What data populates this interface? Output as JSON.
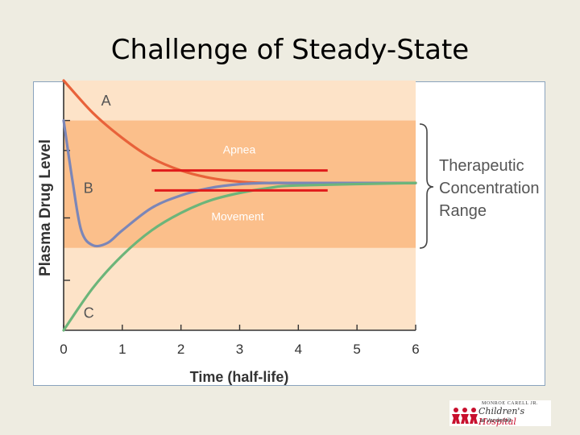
{
  "slide": {
    "title": "Challenge of Steady-State"
  },
  "chart_data": {
    "type": "line",
    "title": "",
    "xlabel": "Time (half-life)",
    "ylabel": "Plasma Drug Level",
    "x_ticks": [
      "0",
      "1",
      "2",
      "3",
      "4",
      "5",
      "6"
    ],
    "xlim": [
      0,
      6
    ],
    "steady_state_level": 0.59,
    "series": [
      {
        "name": "A",
        "color": "#e8623a",
        "x": [
          0,
          0.5,
          1,
          1.5,
          2,
          2.5,
          3,
          3.5,
          4,
          6
        ],
        "y": [
          1.0,
          0.87,
          0.77,
          0.69,
          0.64,
          0.61,
          0.595,
          0.59,
          0.59,
          0.59
        ]
      },
      {
        "name": "B",
        "color": "#7b86b8",
        "x": [
          0,
          0.15,
          0.3,
          0.5,
          0.75,
          1,
          1.5,
          2,
          2.5,
          3,
          3.5,
          4,
          6
        ],
        "y": [
          0.84,
          0.6,
          0.4,
          0.34,
          0.35,
          0.4,
          0.49,
          0.54,
          0.57,
          0.585,
          0.59,
          0.59,
          0.59
        ]
      },
      {
        "name": "C",
        "color": "#6cb57a",
        "x": [
          0,
          0.5,
          1,
          1.5,
          2,
          2.5,
          3,
          3.5,
          4,
          6
        ],
        "y": [
          0.0,
          0.17,
          0.3,
          0.4,
          0.47,
          0.52,
          0.55,
          0.57,
          0.58,
          0.59
        ]
      }
    ],
    "bands": [
      {
        "name": "Therapeutic Concentration Range",
        "y": [
          0.33,
          0.84
        ],
        "x": [
          0,
          6
        ]
      },
      {
        "name": "background-range",
        "y": [
          0,
          1.0
        ],
        "x": [
          0,
          6
        ]
      }
    ],
    "bracket_label": [
      "Therapeutic",
      "Concentration",
      "Range"
    ],
    "threshold_lines": [
      {
        "label": "Apnea",
        "y": 0.64,
        "x": [
          1.5,
          4.5
        ],
        "color": "#e01b1b"
      },
      {
        "label": "Movement",
        "y": 0.56,
        "x": [
          1.55,
          4.5
        ],
        "color": "#e01b1b"
      }
    ],
    "colors": {
      "band_outer": "#fde3c8",
      "band_inner": "#fbbf8b",
      "axis": "#333333"
    }
  },
  "logo": {
    "line1": "MONROE CARELL JR.",
    "line2a": "Children's ",
    "line2b": "Hospital",
    "line3": "at Vanderbilt"
  }
}
